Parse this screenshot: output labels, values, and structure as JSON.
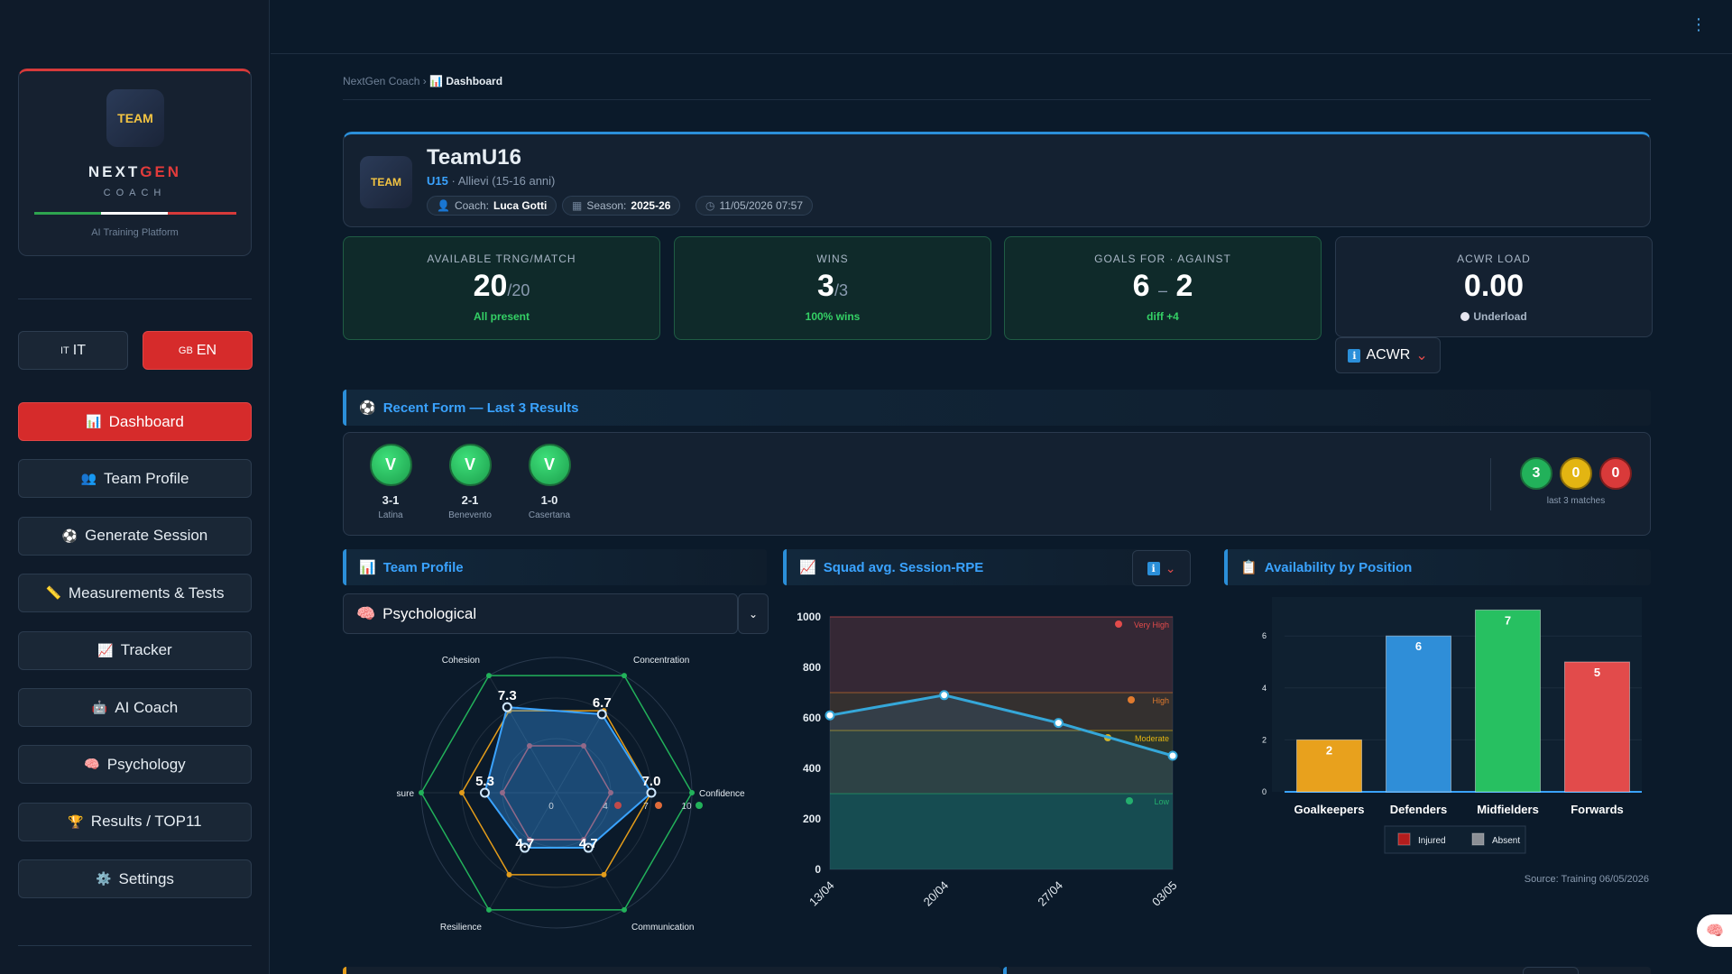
{
  "brand": {
    "logo_text": "TEAM",
    "name_a": "NEXT",
    "name_b": "GEN",
    "sub": "COACH",
    "tagline": "AI Training Platform"
  },
  "lang": [
    {
      "flag": "IT",
      "label": "IT",
      "active": false
    },
    {
      "flag": "GB",
      "label": "EN",
      "active": true
    }
  ],
  "nav": [
    {
      "icon": "📊",
      "label": "Dashboard",
      "active": true
    },
    {
      "icon": "👥",
      "label": "Team Profile"
    },
    {
      "icon": "⚽",
      "label": "Generate Session"
    },
    {
      "icon": "📏",
      "label": "Measurements & Tests"
    },
    {
      "icon": "📈",
      "label": "Tracker"
    },
    {
      "icon": "🤖",
      "label": "AI Coach"
    },
    {
      "icon": "🧠",
      "label": "Psychology"
    },
    {
      "icon": "🏆",
      "label": "Results / TOP11"
    },
    {
      "icon": "⚙️",
      "label": "Settings"
    }
  ],
  "breadcrumb": {
    "root": "NextGen Coach",
    "sep": "›",
    "icon": "📊",
    "current": "Dashboard"
  },
  "team": {
    "logo_text": "TEAM",
    "name": "TeamU16",
    "level": "U15",
    "category": "· Allievi (15-16 anni)",
    "coach_label": "Coach:",
    "coach": "Luca Gotti",
    "season_label": "Season:",
    "season": "2025-26",
    "datetime": "11/05/2026 07:57"
  },
  "kpis": [
    {
      "label": "AVAILABLE TRNG/MATCH",
      "value": "20",
      "suffix": "/20",
      "sub": "All present"
    },
    {
      "label": "WINS",
      "value": "3",
      "suffix": "/3",
      "sub": "100% wins"
    },
    {
      "label": "GOALS FOR · AGAINST",
      "value": "6",
      "sep": "–",
      "value2": "2",
      "sub": "diff +4"
    },
    {
      "label": "ACWR LOAD",
      "value": "0.00",
      "sub": "Underload"
    }
  ],
  "acwr_button": {
    "icon": "ℹ",
    "label": "ACWR",
    "chevron": "⌄"
  },
  "form": {
    "title": "Recent Form — Last 3 Results",
    "icon": "⚽",
    "results": [
      {
        "res": "V",
        "score": "3-1",
        "opp": "Latina"
      },
      {
        "res": "V",
        "score": "2-1",
        "opp": "Benevento"
      },
      {
        "res": "V",
        "score": "1-0",
        "opp": "Casertana"
      }
    ],
    "counts": {
      "wins": "3",
      "draws": "0",
      "losses": "0",
      "label": "last 3 matches"
    },
    "colors": {
      "win": "#22b15a",
      "draw": "#e3b512",
      "loss": "#d93a3a"
    }
  },
  "team_profile": {
    "title": "Team Profile",
    "icon": "📊",
    "select_icon": "🧠",
    "select_value": "Psychological",
    "chevron": "⌄"
  },
  "radar": {
    "type": "radar",
    "axes": [
      "Cohesion",
      "Concentration",
      "Confidence",
      "Communication",
      "Resilience",
      "Pressure"
    ],
    "max": 10,
    "team_values": [
      7.3,
      6.7,
      7.0,
      4.7,
      4.7,
      5.3
    ],
    "team_labels": [
      "7.3",
      "6.7",
      "7.0",
      "4.7",
      "4.7",
      "5.3"
    ],
    "high_threshold": 10,
    "mid_threshold": 7,
    "low_threshold": 4,
    "scale_labels": [
      "0",
      "4",
      "7",
      "10"
    ],
    "colors": {
      "team": "#3aa3ff",
      "high": "#22b15a",
      "mid": "#e39c1a",
      "low": "#c14a4a"
    }
  },
  "rpe": {
    "title": "Squad avg. Session-RPE",
    "icon": "📈",
    "info_icon": "ℹ",
    "chevron": "⌄",
    "chart_data": {
      "type": "line",
      "x": [
        "13/04",
        "20/04",
        "27/04",
        "03/05"
      ],
      "series": [
        {
          "values": [
            610,
            690,
            580,
            450
          ]
        }
      ],
      "ylim": [
        0,
        1000
      ],
      "yticks": [
        0,
        200,
        400,
        600,
        800,
        1000
      ],
      "zones": [
        {
          "name": "Very High",
          "from": 700,
          "to": 1000,
          "color": "#e24b4b"
        },
        {
          "name": "High",
          "from": 550,
          "to": 700,
          "color": "#e07a2e"
        },
        {
          "name": "Moderate",
          "from": 300,
          "to": 550,
          "color": "#e3b512"
        },
        {
          "name": "Low",
          "from": 0,
          "to": 300,
          "color": "#22b15a"
        }
      ]
    }
  },
  "availability": {
    "title": "Availability by Position",
    "icon": "📋",
    "chart_data": {
      "type": "bar",
      "categories": [
        "Goalkeepers",
        "Defenders",
        "Midfielders",
        "Forwards"
      ],
      "values": [
        2,
        6,
        7,
        5
      ],
      "ylim": [
        0,
        7.5
      ],
      "yticks": [
        0,
        2,
        4,
        6
      ],
      "colors": [
        "#e8a11d",
        "#2f8ed8",
        "#27c061",
        "#e24b4b"
      ],
      "legend": [
        {
          "name": "Injured",
          "color": "#b31d1d"
        },
        {
          "name": "Absent",
          "color": "#8b8f95"
        }
      ]
    },
    "source": "Source: Training 06/05/2026"
  },
  "kebab": "⋮",
  "fab_icon": "🧠"
}
